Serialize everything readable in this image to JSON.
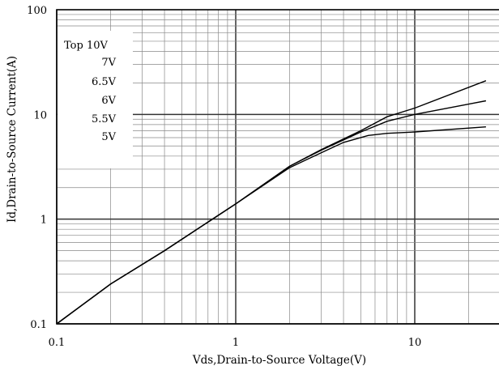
{
  "chart_data": {
    "type": "line",
    "xscale": "log",
    "yscale": "log",
    "xlim": [
      0.1,
      25
    ],
    "ylim": [
      0.1,
      100
    ],
    "grid": true,
    "xlabel": "Vds,Drain-to-Source Voltage(V)",
    "ylabel": "Id,Drain-to-Source Current(A)",
    "x_ticks": [
      "0.1",
      "1",
      "10"
    ],
    "y_ticks": [
      "0.1",
      "1",
      "10",
      "100"
    ],
    "legend": {
      "placement": "top-left",
      "entries": [
        "Top 10V",
        "7V",
        "6.5V",
        "6V",
        "5.5V",
        "5V"
      ]
    },
    "series": [
      {
        "x": [
          0.1,
          0.2,
          0.4,
          1,
          2,
          3,
          5,
          7,
          10,
          25
        ],
        "y": [
          0.1,
          0.24,
          0.5,
          1.4,
          3.2,
          4.6,
          7.0,
          9.5,
          11.5,
          21
        ]
      },
      {
        "x": [
          0.1,
          0.2,
          0.4,
          1,
          2,
          3,
          5,
          7,
          10,
          25
        ],
        "y": [
          0.1,
          0.24,
          0.5,
          1.4,
          3.2,
          4.55,
          6.8,
          8.6,
          10,
          13.5
        ]
      },
      {
        "x": [
          0.1,
          0.2,
          0.4,
          1,
          2,
          3,
          4,
          5.5,
          7,
          10,
          25
        ],
        "y": [
          0.1,
          0.24,
          0.5,
          1.4,
          3.1,
          4.3,
          5.4,
          6.3,
          6.6,
          6.8,
          7.6
        ]
      }
    ]
  }
}
